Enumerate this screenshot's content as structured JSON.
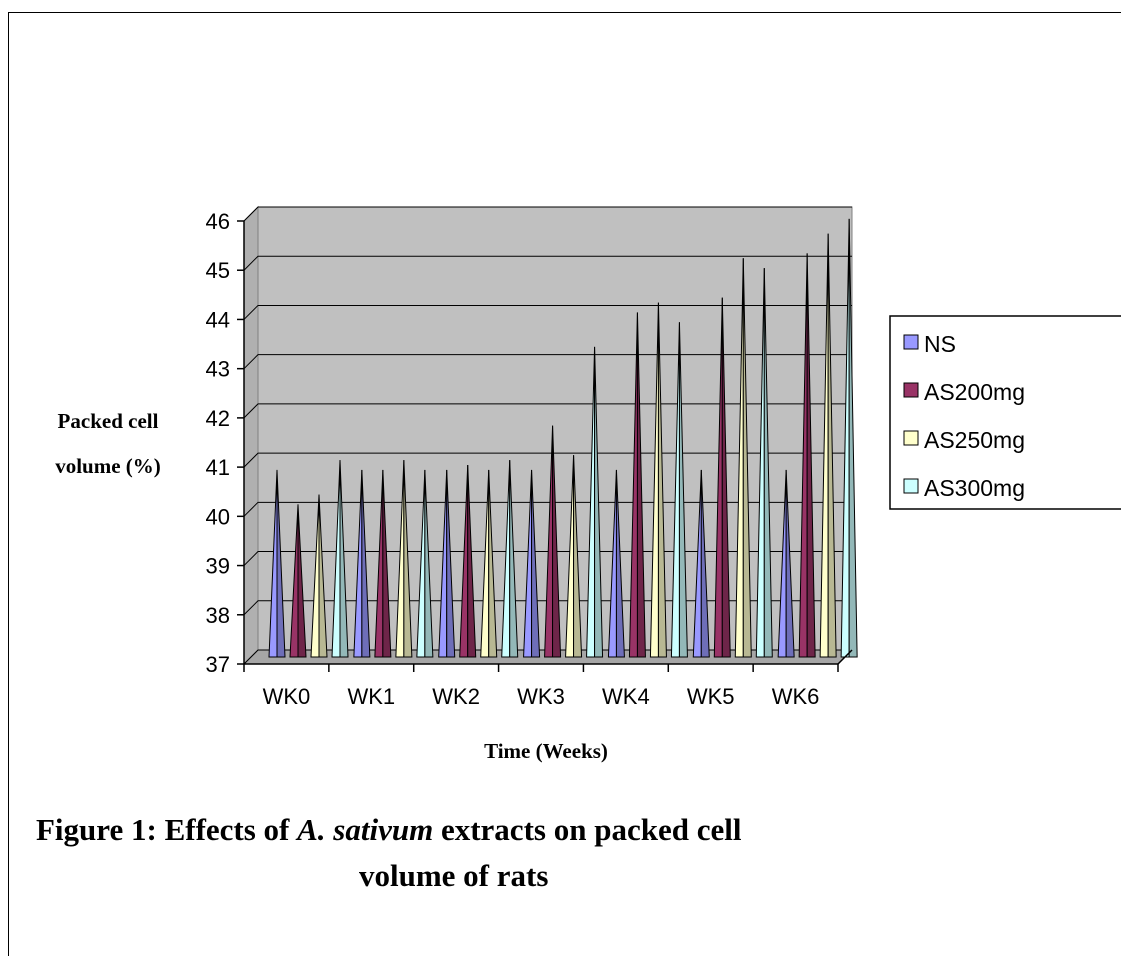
{
  "chart_data": {
    "type": "bar",
    "bar_shape": "cone",
    "categories": [
      "WK0",
      "WK1",
      "WK2",
      "WK3",
      "WK4",
      "WK5",
      "WK6"
    ],
    "series": [
      {
        "name": "NS",
        "values": [
          40.8,
          40.8,
          40.8,
          40.8,
          40.8,
          40.8,
          40.8
        ]
      },
      {
        "name": "AS200mg",
        "values": [
          40.1,
          40.8,
          40.9,
          41.7,
          44.0,
          44.3,
          45.2
        ]
      },
      {
        "name": "AS250mg",
        "values": [
          40.3,
          41.0,
          40.8,
          41.1,
          44.2,
          45.1,
          45.6
        ]
      },
      {
        "name": "AS300mg",
        "values": [
          41.0,
          40.8,
          41.0,
          43.3,
          43.8,
          44.9,
          45.9
        ]
      }
    ],
    "colors": [
      "#9999ff",
      "#993366",
      "#ffffcc",
      "#ccffff"
    ],
    "xlabel": "Time (Weeks)",
    "ylabel": [
      "Packed cell",
      "volume (%)"
    ],
    "ylim": [
      37,
      46
    ],
    "yticks": [
      "37",
      "38",
      "39",
      "40",
      "41",
      "42",
      "43",
      "44",
      "45",
      "46"
    ],
    "grid": true,
    "plot_background": "#c0c0c0",
    "legend_position": "right"
  },
  "caption": {
    "prefix": "Figure 1: Effects of ",
    "species": "A. sativum",
    "suffix": " extracts on packed cell",
    "line2": "volume of rats"
  }
}
